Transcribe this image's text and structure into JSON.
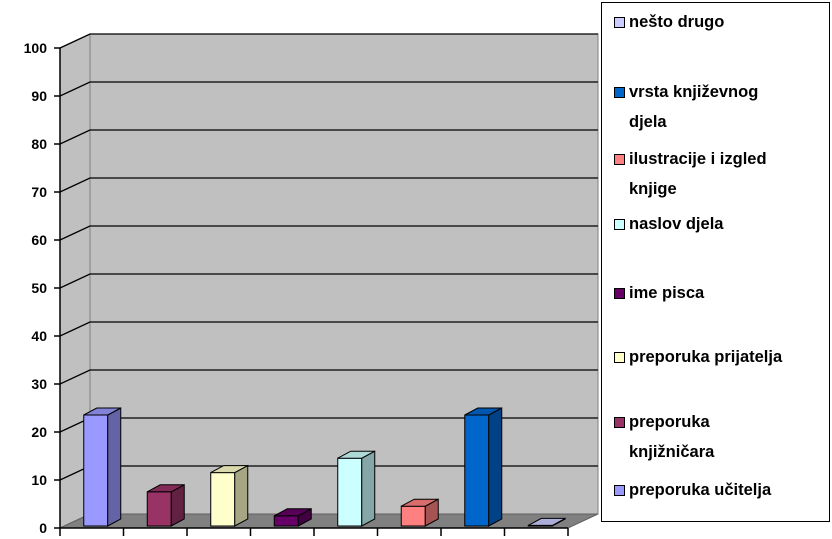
{
  "chart_data": {
    "type": "bar",
    "title": "",
    "xlabel": "",
    "ylabel": "",
    "ylim": [
      0,
      100
    ],
    "yticks": [
      "0",
      "10",
      "20",
      "30",
      "40",
      "50",
      "60",
      "70",
      "80",
      "90",
      "100"
    ],
    "grid": true,
    "legend_position": "right",
    "categories": [
      "preporuka učitelja",
      "preporuka knjižničara",
      "preporuka prijatelja",
      "ime pisca",
      "naslov djela",
      "ilustracije i izgled knjige",
      "vrsta književnog djela",
      "nešto drugo"
    ],
    "values": [
      25,
      9,
      13,
      4,
      16,
      6,
      25,
      2
    ],
    "colors": [
      "#9999ff",
      "#993366",
      "#ffffcc",
      "#660066",
      "#ccffff",
      "#ff8080",
      "#0066cc",
      "#ccccff"
    ],
    "legend_order": [
      7,
      6,
      5,
      4,
      3,
      2,
      1,
      0
    ],
    "legend": [
      "nešto drugo",
      "vrsta književnog djela",
      "ilustracije i izgled knjige",
      "naslov djela",
      "ime pisca",
      "preporuka prijatelja",
      "preporuka knjižničara",
      "preporuka učitelja"
    ],
    "legend_lines": [
      [
        "nešto drugo"
      ],
      [
        "vrsta književnog",
        "djela"
      ],
      [
        "ilustracije i izgled",
        "knjige"
      ],
      [
        "naslov djela"
      ],
      [
        "ime pisca"
      ],
      [
        "preporuka prijatelja"
      ],
      [
        "preporuka",
        "knjižničara"
      ],
      [
        "preporuka učitelja"
      ]
    ],
    "style": {
      "wall_color": "#c0c0c0",
      "floor_color": "#808080",
      "gridline_color": "#000000"
    }
  }
}
